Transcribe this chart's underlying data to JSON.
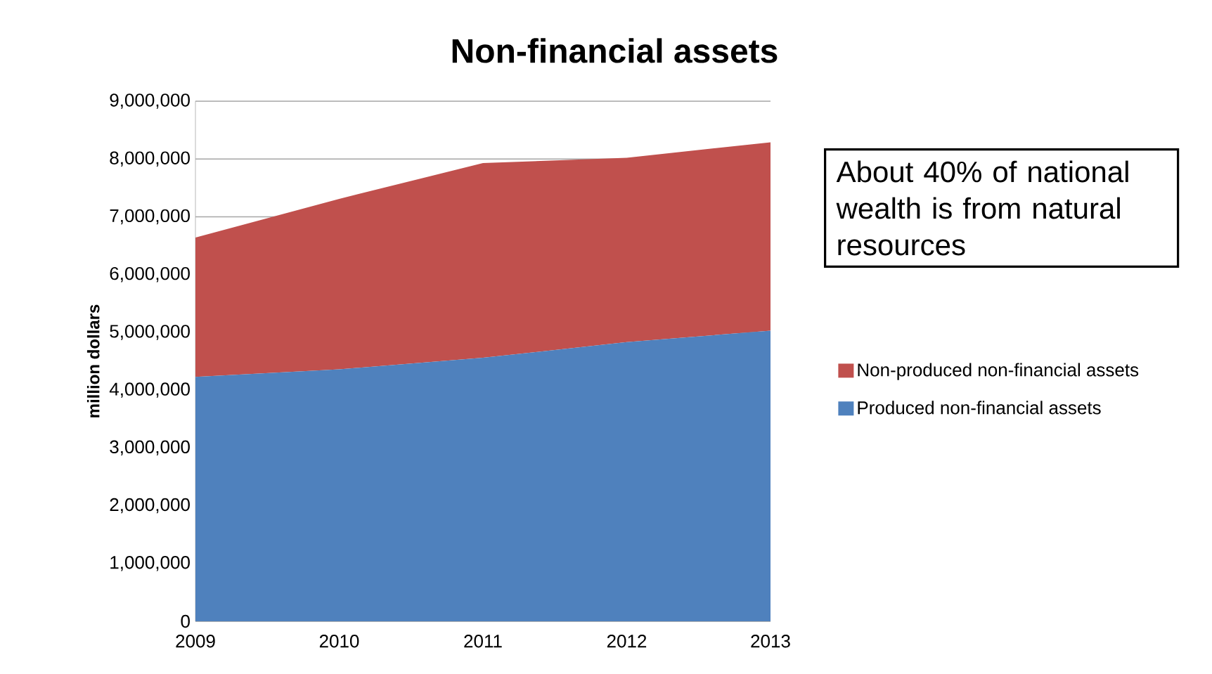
{
  "chart_data": {
    "type": "area",
    "title": "Non-financial assets",
    "ylabel": "million dollars",
    "categories": [
      "2009",
      "2010",
      "2011",
      "2012",
      "2013"
    ],
    "stacked": true,
    "series": [
      {
        "name": "Produced non-financial assets",
        "color": "#4f81bd",
        "values": [
          4230000,
          4360000,
          4560000,
          4830000,
          5030000
        ]
      },
      {
        "name": "Non-produced non-financial assets",
        "color": "#c0504d",
        "values": [
          2410000,
          2950000,
          3370000,
          3190000,
          3260000
        ]
      }
    ],
    "ylim": [
      0,
      9000000
    ],
    "yticks": [
      {
        "value": 0,
        "label": "0"
      },
      {
        "value": 1000000,
        "label": "1,000,000"
      },
      {
        "value": 2000000,
        "label": "2,000,000"
      },
      {
        "value": 3000000,
        "label": "3,000,000"
      },
      {
        "value": 4000000,
        "label": "4,000,000"
      },
      {
        "value": 5000000,
        "label": "5,000,000"
      },
      {
        "value": 6000000,
        "label": "6,000,000"
      },
      {
        "value": 7000000,
        "label": "7,000,000"
      },
      {
        "value": 8000000,
        "label": "8,000,000"
      },
      {
        "value": 9000000,
        "label": "9,000,000"
      }
    ],
    "grid": "y",
    "legend": "right",
    "annotations": [
      "About 40% of national wealth is from natural resources"
    ]
  }
}
